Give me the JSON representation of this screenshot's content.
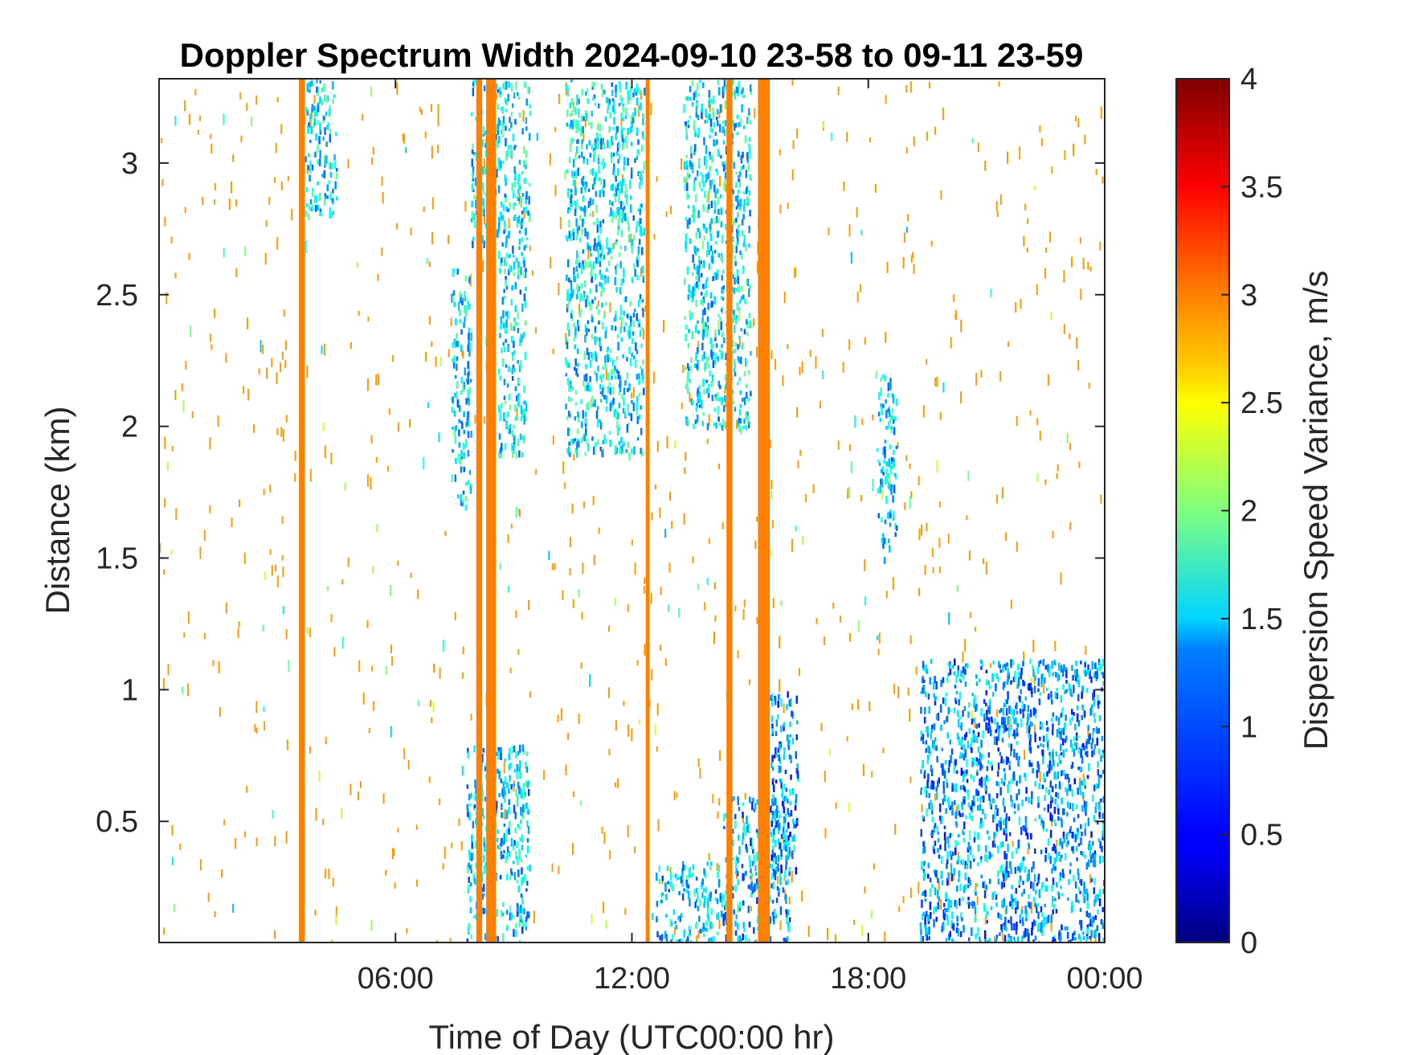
{
  "chart_data": {
    "type": "heatmap",
    "title": "Doppler Spectrum Width 2024-09-10 23-58 to 09-11 23-59",
    "xlabel": "Time of Day (UTC00:00 hr)",
    "ylabel": "Distance (km)",
    "xlim_hours": [
      0,
      24
    ],
    "ylim_km": [
      0.04,
      3.32
    ],
    "x_ticks": [
      {
        "value": 6,
        "label": "06:00"
      },
      {
        "value": 12,
        "label": "12:00"
      },
      {
        "value": 18,
        "label": "18:00"
      },
      {
        "value": 24,
        "label": "00:00"
      }
    ],
    "y_ticks": [
      {
        "value": 0.5,
        "label": "0.5"
      },
      {
        "value": 1,
        "label": "1"
      },
      {
        "value": 1.5,
        "label": "1.5"
      },
      {
        "value": 2,
        "label": "2"
      },
      {
        "value": 2.5,
        "label": "2.5"
      },
      {
        "value": 3,
        "label": "3"
      }
    ],
    "colorbar": {
      "label": "Dispersion Speed Variance, m/s",
      "colormap": "jet",
      "range": [
        0,
        4
      ],
      "ticks": [
        {
          "value": 0,
          "label": "0"
        },
        {
          "value": 0.5,
          "label": "0.5"
        },
        {
          "value": 1,
          "label": "1"
        },
        {
          "value": 1.5,
          "label": "1.5"
        },
        {
          "value": 2,
          "label": "2"
        },
        {
          "value": 2.5,
          "label": "2.5"
        },
        {
          "value": 3,
          "label": "3"
        },
        {
          "value": 3.5,
          "label": "3.5"
        },
        {
          "value": 4,
          "label": "4"
        }
      ]
    },
    "vertical_bands": [
      {
        "t0": 3.55,
        "t1": 3.7,
        "value": 3.0
      },
      {
        "t0": 8.05,
        "t1": 8.2,
        "value": 3.0
      },
      {
        "t0": 8.3,
        "t1": 8.55,
        "value": 3.0
      },
      {
        "t0": 12.35,
        "t1": 12.45,
        "value": 3.0
      },
      {
        "t0": 14.4,
        "t1": 14.55,
        "value": 3.0
      },
      {
        "t0": 15.2,
        "t1": 15.5,
        "value": 3.0
      }
    ],
    "echo_regions": [
      {
        "t0": 19.3,
        "t1": 24.0,
        "d0": 0.04,
        "d1": 1.12,
        "value": 1.1
      },
      {
        "t0": 12.6,
        "t1": 14.3,
        "d0": 0.04,
        "d1": 0.35,
        "value": 1.3
      },
      {
        "t0": 14.3,
        "t1": 16.0,
        "d0": 0.04,
        "d1": 0.6,
        "value": 1.2
      },
      {
        "t0": 7.4,
        "t1": 7.9,
        "d0": 1.7,
        "d1": 2.6,
        "value": 1.4
      },
      {
        "t0": 8.6,
        "t1": 9.3,
        "d0": 1.9,
        "d1": 2.7,
        "value": 1.4
      },
      {
        "t0": 7.9,
        "t1": 9.4,
        "d0": 2.7,
        "d1": 3.32,
        "value": 1.4
      },
      {
        "t0": 10.3,
        "t1": 12.3,
        "d0": 1.9,
        "d1": 3.32,
        "value": 1.4
      },
      {
        "t0": 13.3,
        "t1": 15.0,
        "d0": 2.0,
        "d1": 3.32,
        "value": 1.4
      },
      {
        "t0": 3.7,
        "t1": 4.5,
        "d0": 2.8,
        "d1": 3.32,
        "value": 1.4
      },
      {
        "t0": 18.2,
        "t1": 18.7,
        "d0": 1.5,
        "d1": 2.2,
        "value": 1.3
      },
      {
        "t0": 7.8,
        "t1": 9.4,
        "d0": 0.05,
        "d1": 0.8,
        "value": 1.3
      },
      {
        "t0": 15.5,
        "t1": 16.2,
        "d0": 0.3,
        "d1": 1.0,
        "value": 1.0
      }
    ]
  }
}
